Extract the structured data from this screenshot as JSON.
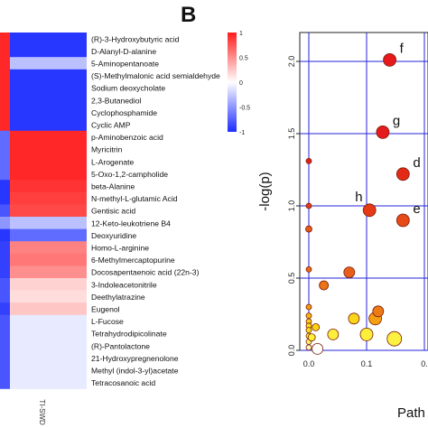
{
  "figure": {
    "panel_b_label": "B"
  },
  "chart_data": [
    {
      "type": "heatmap",
      "panel": "A",
      "rows": [
        {
          "metabolite": "(R)-3-Hydroxybutyric acid",
          "values": [
            0.95,
            -0.95
          ]
        },
        {
          "metabolite": "D-Alanyl-D-alanine",
          "values": [
            0.95,
            -0.95
          ]
        },
        {
          "metabolite": "5-Aminopentanoate",
          "values": [
            0.95,
            -0.3
          ]
        },
        {
          "metabolite": "(S)-Methylmalonic acid semialdehyde",
          "values": [
            0.95,
            -0.95
          ]
        },
        {
          "metabolite": "Sodium deoxycholate",
          "values": [
            0.95,
            -0.95
          ]
        },
        {
          "metabolite": "2,3-Butanediol",
          "values": [
            0.95,
            -0.95
          ]
        },
        {
          "metabolite": "Cyclophosphamide",
          "values": [
            0.95,
            -0.95
          ]
        },
        {
          "metabolite": "Cyclic AMP",
          "values": [
            0.95,
            -0.95
          ]
        },
        {
          "metabolite": "p-Aminobenzoic acid",
          "values": [
            -0.7,
            0.95
          ]
        },
        {
          "metabolite": "Myricitrin",
          "values": [
            -0.7,
            0.95
          ]
        },
        {
          "metabolite": "L-Arogenate",
          "values": [
            -0.7,
            0.95
          ]
        },
        {
          "metabolite": "5-Oxo-1,2-campholide",
          "values": [
            -0.7,
            0.95
          ]
        },
        {
          "metabolite": "beta-Alanine",
          "values": [
            -0.95,
            0.9
          ]
        },
        {
          "metabolite": "N-methyl-L-glutamic Acid",
          "values": [
            -0.95,
            0.85
          ]
        },
        {
          "metabolite": "Gentisic acid",
          "values": [
            -0.8,
            0.8
          ]
        },
        {
          "metabolite": "12-Keto-leukotriene B4",
          "values": [
            -0.5,
            -0.3
          ]
        },
        {
          "metabolite": "Deoxyuridine",
          "values": [
            -0.95,
            -0.7
          ]
        },
        {
          "metabolite": "Homo-L-arginine",
          "values": [
            -0.9,
            0.55
          ]
        },
        {
          "metabolite": "6-Methylmercaptopurine",
          "values": [
            -0.9,
            0.6
          ]
        },
        {
          "metabolite": "Docosapentaenoic acid (22n-3)",
          "values": [
            -0.9,
            0.5
          ]
        },
        {
          "metabolite": "3-Indoleacetonitrile",
          "values": [
            -0.8,
            0.2
          ]
        },
        {
          "metabolite": "Deethylatrazine",
          "values": [
            -0.8,
            0.15
          ]
        },
        {
          "metabolite": "Eugenol",
          "values": [
            -0.9,
            0.25
          ]
        },
        {
          "metabolite": "L-Fucose",
          "values": [
            -0.8,
            -0.1
          ]
        },
        {
          "metabolite": "Tetrahydrodipicolinate",
          "values": [
            -0.8,
            -0.1
          ]
        },
        {
          "metabolite": "(R)-Pantolactone",
          "values": [
            -0.8,
            -0.1
          ]
        },
        {
          "metabolite": "21-Hydroxypregnenolone",
          "values": [
            -0.8,
            -0.1
          ]
        },
        {
          "metabolite": "Methyl (indol-3-yl)acetate",
          "values": [
            -0.8,
            -0.1
          ]
        },
        {
          "metabolite": "Tetracosanoic acid",
          "values": [
            -0.8,
            -0.1
          ]
        }
      ],
      "column_labels": [
        "",
        "TI-SWD"
      ],
      "colorbar": {
        "ticks": [
          1,
          0.5,
          0,
          -0.5,
          -1
        ],
        "tick_labels": [
          "1",
          "0.5",
          "0",
          "-0.5",
          "-1"
        ],
        "low_color": "#1c2cff",
        "mid_color": "#ffffff",
        "high_color": "#ff1c1c"
      }
    },
    {
      "type": "scatter",
      "panel": "B",
      "xlabel": "Path",
      "ylabel": "-log(p)",
      "xlim": [
        -0.03,
        0.3
      ],
      "ylim": [
        0,
        2.2
      ],
      "x_ticks": [
        0.0,
        0.1,
        0.2
      ],
      "x_tick_labels": [
        "0.0",
        "0.1",
        "0."
      ],
      "y_ticks": [
        0.0,
        0.5,
        1.0,
        1.5,
        2.0
      ],
      "y_tick_labels": [
        "0.0",
        "0.5",
        "1.0",
        "1.5",
        "2.0"
      ],
      "grid": true,
      "grid_color": "#2626d9",
      "points": [
        {
          "x": 0.14,
          "y": 2.01,
          "size": 7,
          "color": "#e41a1c",
          "label": "f"
        },
        {
          "x": 0.128,
          "y": 1.51,
          "size": 7,
          "color": "#e41a1c",
          "label": "g"
        },
        {
          "x": 0.163,
          "y": 1.22,
          "size": 7,
          "color": "#e22a17",
          "label": "d"
        },
        {
          "x": 0.105,
          "y": 0.97,
          "size": 7,
          "color": "#e53a16",
          "label": "h"
        },
        {
          "x": 0.163,
          "y": 0.9,
          "size": 7,
          "color": "#e54a17",
          "label": "e"
        },
        {
          "x": 0.0,
          "y": 1.31,
          "size": 3,
          "color": "#e32018",
          "label": ""
        },
        {
          "x": 0.0,
          "y": 1.0,
          "size": 3,
          "color": "#e33a18",
          "label": ""
        },
        {
          "x": 0.0,
          "y": 0.84,
          "size": 3.5,
          "color": "#e55a17",
          "label": ""
        },
        {
          "x": 0.0,
          "y": 0.56,
          "size": 3,
          "color": "#e96a14",
          "label": ""
        },
        {
          "x": 0.0,
          "y": 0.3,
          "size": 3,
          "color": "#f29a10",
          "label": ""
        },
        {
          "x": 0.0,
          "y": 0.24,
          "size": 3,
          "color": "#f6b90f",
          "label": ""
        },
        {
          "x": 0.0,
          "y": 0.2,
          "size": 3,
          "color": "#f8cf0f",
          "label": ""
        },
        {
          "x": 0.0,
          "y": 0.17,
          "size": 3,
          "color": "#fbe214",
          "label": ""
        },
        {
          "x": 0.0,
          "y": 0.14,
          "size": 3,
          "color": "#fbe214",
          "label": ""
        },
        {
          "x": 0.0,
          "y": 0.1,
          "size": 3,
          "color": "#fdf233",
          "label": ""
        },
        {
          "x": 0.0,
          "y": 0.06,
          "size": 3,
          "color": "#fef66a",
          "label": ""
        },
        {
          "x": 0.0,
          "y": 0.02,
          "size": 3,
          "color": "#fefbc0",
          "label": ""
        },
        {
          "x": 0.005,
          "y": 0.09,
          "size": 4,
          "color": "#fdf233",
          "label": ""
        },
        {
          "x": 0.012,
          "y": 0.16,
          "size": 4,
          "color": "#f8d50f",
          "label": ""
        },
        {
          "x": 0.026,
          "y": 0.45,
          "size": 5,
          "color": "#eb7414",
          "label": ""
        },
        {
          "x": 0.07,
          "y": 0.54,
          "size": 6,
          "color": "#e7601b",
          "label": ""
        },
        {
          "x": 0.078,
          "y": 0.22,
          "size": 6,
          "color": "#fad61b",
          "label": ""
        },
        {
          "x": 0.115,
          "y": 0.22,
          "size": 7,
          "color": "#f59f13",
          "label": ""
        },
        {
          "x": 0.12,
          "y": 0.27,
          "size": 6,
          "color": "#ee7a16",
          "label": ""
        },
        {
          "x": 0.1,
          "y": 0.11,
          "size": 7,
          "color": "#fbef3a",
          "label": ""
        },
        {
          "x": 0.042,
          "y": 0.11,
          "size": 6,
          "color": "#fcee3e",
          "label": ""
        },
        {
          "x": 0.148,
          "y": 0.08,
          "size": 8,
          "color": "#fcf043",
          "label": ""
        },
        {
          "x": 0.22,
          "y": 0.18,
          "size": 7,
          "color": "#f7b716",
          "label": ""
        },
        {
          "x": 0.015,
          "y": 0.01,
          "size": 6,
          "color": "#ffffff",
          "label": ""
        }
      ]
    }
  ]
}
